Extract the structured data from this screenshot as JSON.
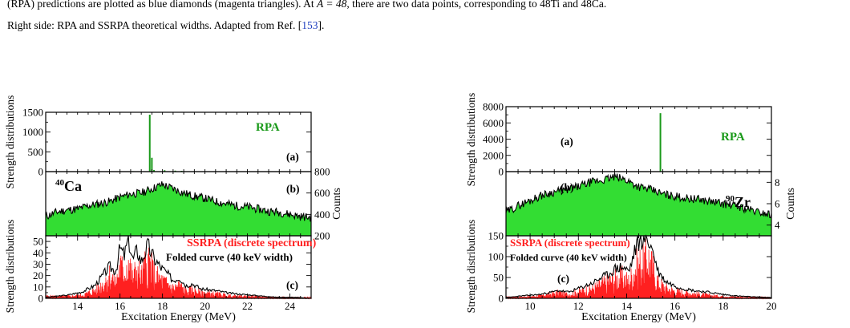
{
  "caption": {
    "line1_prefix": "(RPA) predictions are plotted as blue diamonds (magenta triangles). At ",
    "line1_math": "A = 48",
    "line1_mid": ", there are two data points, corresponding to ",
    "line1_ti": "48Ti",
    "line1_and": " and ",
    "line1_ca": "48Ca.",
    "line2_prefix": "Right side: RPA and SSRPA theoretical widths. Adapted from Ref. [",
    "line2_ref": "153",
    "line2_suffix": "]."
  },
  "colors": {
    "rpa_green": "#1a9a1a",
    "fill_green": "#33dd33",
    "ssrpa_red": "#ff2020",
    "folded_black": "#000000",
    "link_blue": "#1f3fbf"
  },
  "chart_data": [
    {
      "type": "bar",
      "figure": "left",
      "panel": "a",
      "panel_label": "(a)",
      "legend": "RPA",
      "ylabel": "Strength distributions",
      "xlim": [
        12.5,
        25
      ],
      "ylim": [
        0,
        1500
      ],
      "yticks": [
        0,
        500,
        1000,
        1500
      ],
      "x": [
        16.6,
        17.4,
        17.5,
        17.6,
        18.1,
        18.6,
        18.9,
        19.5
      ],
      "values": [
        12,
        1440,
        350,
        40,
        35,
        25,
        20,
        12
      ]
    },
    {
      "type": "area",
      "figure": "left",
      "panel": "b",
      "panel_label": "(b)",
      "nucleus_mass": "40",
      "nucleus_symbol": "Ca",
      "ylabel_right": "Counts",
      "xlim": [
        12.5,
        25
      ],
      "ylim": [
        200,
        800
      ],
      "yticks_right": [
        200,
        400,
        600,
        800
      ],
      "x": [
        12.5,
        13,
        13.5,
        14,
        14.5,
        15,
        15.5,
        16,
        16.5,
        17,
        17.5,
        18,
        18.5,
        19,
        19.5,
        20,
        20.5,
        21,
        21.5,
        22,
        22.5,
        23,
        23.5,
        24,
        24.5,
        25
      ],
      "values": [
        380,
        420,
        440,
        450,
        480,
        500,
        520,
        560,
        590,
        600,
        640,
        680,
        640,
        600,
        570,
        550,
        520,
        500,
        480,
        470,
        450,
        430,
        420,
        400,
        380,
        370
      ]
    },
    {
      "type": "bar",
      "figure": "left",
      "panel": "c",
      "panel_label": "(c)",
      "ylabel": "Strength distributions",
      "xlabel": "Excitation Energy (MeV)",
      "xlim": [
        12.5,
        25
      ],
      "ylim": [
        0,
        55
      ],
      "yticks": [
        0,
        10,
        20,
        30,
        40,
        50
      ],
      "xticks": [
        14,
        16,
        18,
        20,
        22,
        24
      ],
      "series": [
        {
          "name": "SSRPA (discrete spectrum)",
          "x": [
            13.6,
            14.3,
            14.9,
            15.2,
            15.5,
            15.8,
            16.0,
            16.2,
            16.4,
            16.6,
            16.8,
            17.0,
            17.3,
            17.6,
            17.9,
            18.2,
            18.5,
            18.8,
            19.1,
            19.4,
            19.8,
            20.2,
            20.6,
            21.1,
            21.6,
            22.2,
            22.8,
            23.4
          ],
          "values": [
            3,
            5,
            12,
            20,
            32,
            22,
            44,
            36,
            50,
            28,
            40,
            30,
            55,
            34,
            25,
            20,
            14,
            18,
            10,
            12,
            8,
            7,
            6,
            4,
            3,
            3,
            2,
            1
          ]
        },
        {
          "name": "Folded curve (40 keV width)",
          "x": [
            12.5,
            13.5,
            14.2,
            14.8,
            15.2,
            15.5,
            15.8,
            16.0,
            16.2,
            16.4,
            16.6,
            16.8,
            17.0,
            17.3,
            17.6,
            17.9,
            18.2,
            18.5,
            18.8,
            19.1,
            19.4,
            19.8,
            20.2,
            20.6,
            21.1,
            21.6,
            22.2,
            22.8,
            23.4,
            24.2,
            25
          ],
          "values": [
            1,
            3,
            6,
            12,
            22,
            30,
            26,
            48,
            40,
            57,
            36,
            46,
            35,
            50,
            38,
            30,
            24,
            17,
            20,
            12,
            14,
            9,
            8,
            7,
            5,
            4,
            3,
            2,
            1,
            1,
            0
          ]
        }
      ]
    },
    {
      "type": "bar",
      "figure": "right",
      "panel": "a",
      "panel_label": "(a)",
      "legend": "RPA",
      "ylabel": "Strength distributions",
      "xlim": [
        9,
        20
      ],
      "ylim": [
        0,
        8000
      ],
      "yticks": [
        0,
        2000,
        4000,
        6000,
        8000
      ],
      "x": [
        15.4
      ],
      "values": [
        7200
      ]
    },
    {
      "type": "area",
      "figure": "right",
      "panel": "b",
      "panel_label": "(b)",
      "nucleus_mass": "90",
      "nucleus_symbol": "Zr",
      "ylabel_right": "Counts",
      "xlim": [
        9,
        20
      ],
      "ylim": [
        3,
        9
      ],
      "yticks_right": [
        4,
        6,
        8
      ],
      "x": [
        9,
        9.5,
        10,
        10.5,
        11,
        11.5,
        12,
        12.5,
        13,
        13.5,
        14,
        14.5,
        15,
        15.5,
        16,
        16.5,
        17,
        17.5,
        18,
        18.5,
        19,
        19.5,
        20
      ],
      "values": [
        5.2,
        5.8,
        6.3,
        6.8,
        7.1,
        7.3,
        7.6,
        8.0,
        8.2,
        8.5,
        8.2,
        7.6,
        7.3,
        6.9,
        6.7,
        6.5,
        6.4,
        6.2,
        6.0,
        5.8,
        5.5,
        5.2,
        5.0
      ]
    },
    {
      "type": "bar",
      "figure": "right",
      "panel": "c",
      "panel_label": "(c)",
      "ylabel": "Strength distributions",
      "xlabel": "Excitation Energy (MeV)",
      "xlim": [
        9,
        20
      ],
      "ylim": [
        0,
        150
      ],
      "yticks": [
        0,
        50,
        100,
        150
      ],
      "xticks": [
        10,
        12,
        14,
        16,
        18,
        20
      ],
      "series": [
        {
          "name": "SSRPA (discrete spectrum)",
          "x": [
            9.6,
            10.4,
            11.2,
            11.6,
            12.2,
            12.6,
            12.9,
            13.2,
            13.5,
            13.8,
            14.1,
            14.4,
            14.7,
            14.9,
            15.1,
            15.3,
            15.6,
            15.9,
            16.3,
            16.8,
            17.4,
            18.0,
            18.6,
            19.2
          ],
          "values": [
            5,
            10,
            22,
            15,
            30,
            38,
            50,
            62,
            72,
            80,
            65,
            120,
            140,
            155,
            110,
            60,
            40,
            30,
            24,
            18,
            12,
            8,
            5,
            3
          ]
        },
        {
          "name": "Folded curve (40 keV width)",
          "x": [
            9,
            9.6,
            10.4,
            11.2,
            11.6,
            12.2,
            12.6,
            12.9,
            13.2,
            13.5,
            13.8,
            14.1,
            14.4,
            14.7,
            14.9,
            15.1,
            15.3,
            15.6,
            15.9,
            16.3,
            16.8,
            17.4,
            18.0,
            18.6,
            19.2,
            20
          ],
          "values": [
            2,
            6,
            10,
            20,
            16,
            30,
            40,
            52,
            60,
            75,
            82,
            70,
            135,
            160,
            150,
            120,
            70,
            45,
            35,
            26,
            20,
            16,
            10,
            6,
            4,
            2
          ]
        }
      ]
    }
  ]
}
